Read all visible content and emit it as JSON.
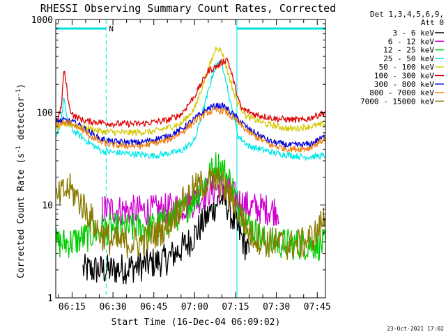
{
  "chart_data": {
    "type": "line",
    "title": "RHESSI Observing Summary Count Rates, Corrected",
    "ylabel_main": "Corrected Count Rate (s",
    "ylabel_sup1": "-1",
    "ylabel_mid": " detector",
    "ylabel_sup2": "-1",
    "ylabel_end": ")",
    "xlabel": "Start Time (16-Dec-04 06:09:02)",
    "yscale": "log",
    "ylim": [
      1,
      1000
    ],
    "xlim_minutes_after_06_00": [
      9,
      108
    ],
    "y_ticks": [
      "1",
      "10",
      "100",
      "1000"
    ],
    "x_ticks": [
      "06:15",
      "06:30",
      "06:45",
      "07:00",
      "07:15",
      "07:30",
      "07:45"
    ],
    "header_lines": [
      "Det 1,3,4,5,6,9,",
      "Att 0"
    ],
    "legend_position": "right",
    "footer_date": "23-Oct-2021 17:02",
    "annotations": [
      {
        "label": "N",
        "text": "N"
      }
    ],
    "night_intervals_min": [
      [
        9,
        27.5
      ],
      [
        75.5,
        108
      ]
    ],
    "series": [
      {
        "name": "3 - 6 keV",
        "color": "#000000",
        "flare": false,
        "points": [
          [
            19,
            2
          ],
          [
            22,
            2
          ],
          [
            26,
            2
          ],
          [
            30,
            2
          ],
          [
            40,
            2.2
          ],
          [
            50,
            2.6
          ],
          [
            58,
            4
          ],
          [
            64,
            7
          ],
          [
            68,
            10.5
          ],
          [
            70,
            12
          ],
          [
            72,
            10
          ],
          [
            75,
            6
          ],
          [
            78,
            4
          ],
          [
            80,
            3
          ]
        ]
      },
      {
        "name": "6 - 12 keV",
        "color": "#d000d0",
        "flare": false,
        "points": [
          [
            26,
            9
          ],
          [
            35,
            8.7
          ],
          [
            45,
            8.7
          ],
          [
            55,
            9.5
          ],
          [
            60,
            11
          ],
          [
            65,
            14
          ],
          [
            69,
            15.5
          ],
          [
            72,
            14.5
          ],
          [
            76,
            11
          ],
          [
            80,
            9.5
          ],
          [
            86,
            9
          ],
          [
            91,
            8.8
          ]
        ]
      },
      {
        "name": "12 - 25 keV",
        "color": "#00cc00",
        "flare": false,
        "points": [
          [
            9,
            3.8
          ],
          [
            15,
            4
          ],
          [
            20,
            4.5
          ],
          [
            26,
            5.5
          ],
          [
            35,
            5.5
          ],
          [
            45,
            5.8
          ],
          [
            55,
            8
          ],
          [
            60,
            12
          ],
          [
            65,
            20
          ],
          [
            68,
            27
          ],
          [
            70,
            25
          ],
          [
            73,
            18
          ],
          [
            76,
            10
          ],
          [
            80,
            6
          ],
          [
            86,
            4
          ],
          [
            95,
            3.8
          ],
          [
            108,
            3.7
          ]
        ]
      },
      {
        "name": "25 - 50 keV",
        "color": "#00e8e8",
        "flare": true,
        "points": [
          [
            9,
            50
          ],
          [
            11,
            80
          ],
          [
            12,
            150
          ],
          [
            13,
            85
          ],
          [
            15,
            65
          ],
          [
            20,
            50
          ],
          [
            26,
            38
          ],
          [
            35,
            36
          ],
          [
            45,
            34
          ],
          [
            55,
            38
          ],
          [
            60,
            50
          ],
          [
            64,
            130
          ],
          [
            67,
            280
          ],
          [
            69,
            360
          ],
          [
            71,
            270
          ],
          [
            73,
            130
          ],
          [
            76,
            55
          ],
          [
            80,
            43
          ],
          [
            90,
            36
          ],
          [
            100,
            33
          ],
          [
            108,
            34
          ]
        ]
      },
      {
        "name": "50 - 100 keV",
        "color": "#d4c800",
        "flare": false,
        "points": [
          [
            9,
            68
          ],
          [
            13,
            75
          ],
          [
            16,
            72
          ],
          [
            20,
            68
          ],
          [
            26,
            62
          ],
          [
            35,
            60
          ],
          [
            45,
            62
          ],
          [
            55,
            75
          ],
          [
            60,
            110
          ],
          [
            65,
            290
          ],
          [
            68,
            510
          ],
          [
            70,
            450
          ],
          [
            72,
            280
          ],
          [
            75,
            140
          ],
          [
            79,
            90
          ],
          [
            86,
            75
          ],
          [
            95,
            66
          ],
          [
            108,
            74
          ]
        ]
      },
      {
        "name": "100 - 300 keV",
        "color": "#e00000",
        "flare": true,
        "points": [
          [
            9,
            75
          ],
          [
            11,
            110
          ],
          [
            12,
            285
          ],
          [
            13,
            190
          ],
          [
            14,
            110
          ],
          [
            16,
            90
          ],
          [
            20,
            80
          ],
          [
            26,
            78
          ],
          [
            30,
            75
          ],
          [
            40,
            75
          ],
          [
            50,
            82
          ],
          [
            55,
            95
          ],
          [
            60,
            150
          ],
          [
            65,
            280
          ],
          [
            68,
            310
          ],
          [
            72,
            380
          ],
          [
            75,
            180
          ],
          [
            77,
            110
          ],
          [
            82,
            95
          ],
          [
            90,
            85
          ],
          [
            100,
            82
          ],
          [
            108,
            100
          ]
        ]
      },
      {
        "name": "300 - 800 keV",
        "color": "#0000dd",
        "flare": false,
        "points": [
          [
            9,
            80
          ],
          [
            13,
            82
          ],
          [
            17,
            75
          ],
          [
            20,
            65
          ],
          [
            25,
            52
          ],
          [
            30,
            48
          ],
          [
            40,
            47
          ],
          [
            50,
            55
          ],
          [
            55,
            65
          ],
          [
            60,
            85
          ],
          [
            65,
            110
          ],
          [
            68,
            118
          ],
          [
            71,
            115
          ],
          [
            75,
            90
          ],
          [
            80,
            65
          ],
          [
            88,
            48
          ],
          [
            95,
            44
          ],
          [
            102,
            45
          ],
          [
            108,
            55
          ]
        ]
      },
      {
        "name": "800 - 7000 keV",
        "color": "#f08010",
        "flare": false,
        "points": [
          [
            9,
            76
          ],
          [
            13,
            78
          ],
          [
            17,
            70
          ],
          [
            20,
            60
          ],
          [
            25,
            48
          ],
          [
            30,
            44
          ],
          [
            40,
            43
          ],
          [
            50,
            50
          ],
          [
            55,
            60
          ],
          [
            60,
            80
          ],
          [
            65,
            100
          ],
          [
            68,
            105
          ],
          [
            71,
            103
          ],
          [
            75,
            82
          ],
          [
            80,
            60
          ],
          [
            88,
            44
          ],
          [
            95,
            40
          ],
          [
            102,
            41
          ],
          [
            108,
            52
          ]
        ]
      },
      {
        "name": "7000 - 15000 keV",
        "color": "#8a7a00",
        "flare": false,
        "points": [
          [
            9,
            11
          ],
          [
            12,
            14
          ],
          [
            14,
            15
          ],
          [
            16,
            13
          ],
          [
            20,
            9
          ],
          [
            25,
            5
          ],
          [
            30,
            4
          ],
          [
            40,
            3.9
          ],
          [
            50,
            6
          ],
          [
            55,
            10
          ],
          [
            60,
            15
          ],
          [
            65,
            18
          ],
          [
            69,
            18
          ],
          [
            72,
            14
          ],
          [
            76,
            9
          ],
          [
            80,
            5
          ],
          [
            86,
            4
          ],
          [
            95,
            3.7
          ],
          [
            100,
            3.9
          ],
          [
            105,
            5
          ],
          [
            108,
            8
          ]
        ]
      }
    ]
  }
}
